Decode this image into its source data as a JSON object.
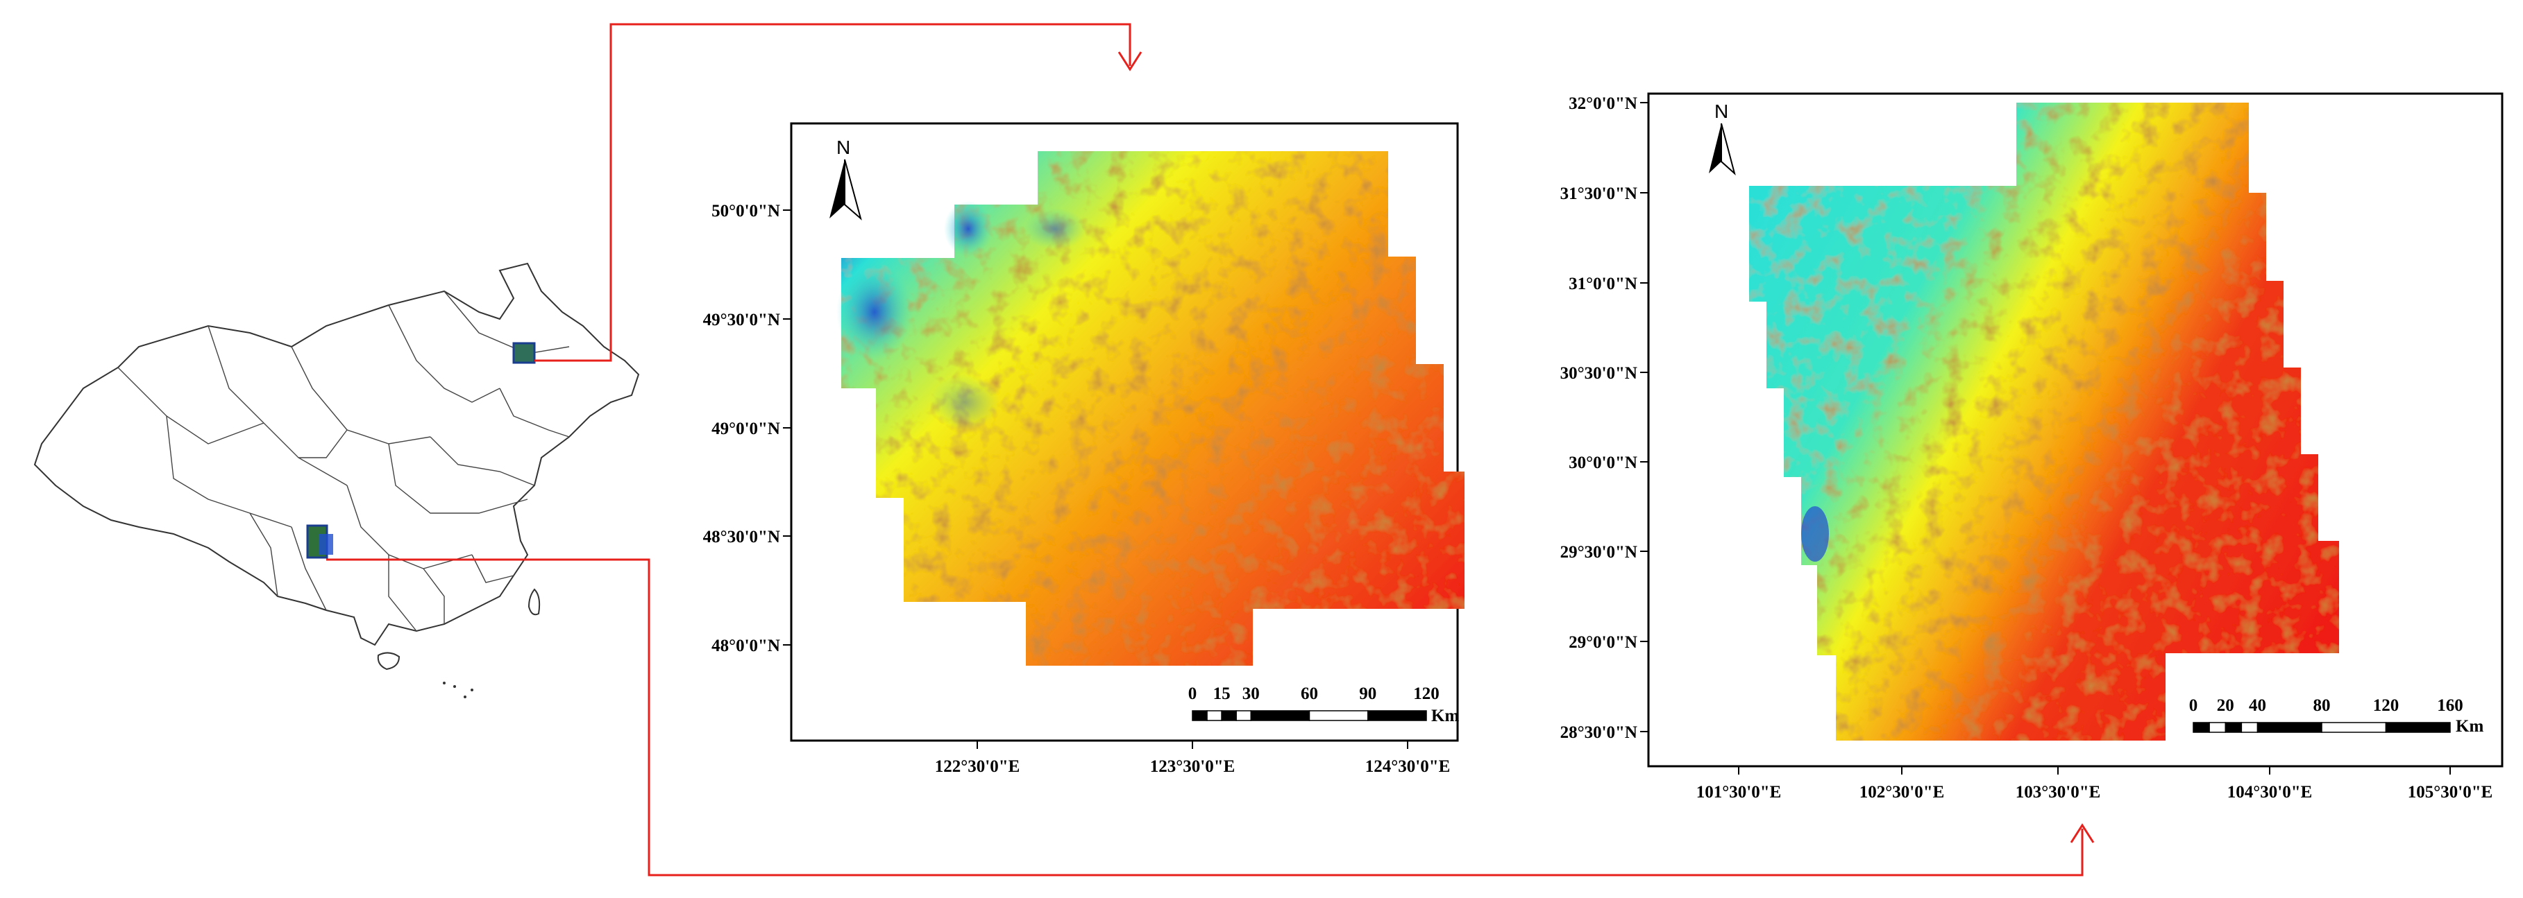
{
  "colors": {
    "connector": "#e8201c",
    "frame": "#000000",
    "outline": "#333333",
    "dem_low": "#1f4fd1",
    "dem_midlow": "#2ce0d6",
    "dem_mid": "#f4f21a",
    "dem_midhigh": "#f79a10",
    "dem_high": "#ef1d12"
  },
  "overview_map": {
    "regions": [
      "north-east",
      "south-west"
    ]
  },
  "north_map": {
    "north_arrow": "N",
    "lat_ticks": [
      "50°0'0\"N",
      "49°30'0\"N",
      "49°0'0\"N",
      "48°30'0\"N",
      "48°0'0\"N"
    ],
    "lon_ticks": [
      "122°30'0\"E",
      "123°30'0\"E",
      "124°30'0\"E"
    ],
    "scale_labels": [
      "0",
      "15",
      "30",
      "60",
      "90",
      "120"
    ],
    "scale_unit": "Km"
  },
  "south_map": {
    "north_arrow": "N",
    "lat_ticks": [
      "32°0'0\"N",
      "31°30'0\"N",
      "31°0'0\"N",
      "30°30'0\"N",
      "30°0'0\"N",
      "29°30'0\"N",
      "29°0'0\"N",
      "28°30'0\"N"
    ],
    "lon_ticks": [
      "101°30'0\"E",
      "102°30'0\"E",
      "103°30'0\"E",
      "104°30'0\"E",
      "105°30'0\"E"
    ],
    "scale_labels": [
      "0",
      "20",
      "40",
      "80",
      "120",
      "160"
    ],
    "scale_unit": "Km"
  }
}
